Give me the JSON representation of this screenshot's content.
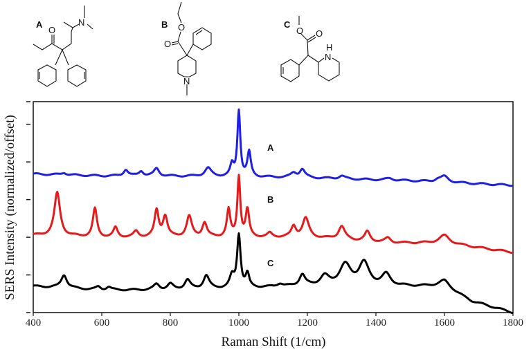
{
  "molecules": [
    {
      "label": "A",
      "atoms": [
        "O",
        "N"
      ]
    },
    {
      "label": "B",
      "atoms": [
        "O",
        "O",
        "N"
      ]
    },
    {
      "label": "C",
      "atoms": [
        "O",
        "O",
        "N",
        "H"
      ]
    }
  ],
  "chart_data": {
    "type": "line",
    "title": "",
    "xlabel": "Raman Shift (1/cm)",
    "ylabel": "SERS Intensity (normalized/offset)",
    "xlim": [
      400,
      1800
    ],
    "ylim": [
      0,
      5.6
    ],
    "xticks": [
      "400",
      "600",
      "800",
      "1000",
      "1200",
      "1400",
      "1600",
      "1800"
    ],
    "xtick_values": [
      400,
      600,
      800,
      1000,
      1200,
      1400,
      1600,
      1800
    ],
    "ytick_values": [
      0,
      1,
      2,
      3,
      4,
      5,
      5.6
    ],
    "grid": false,
    "series": [
      {
        "name": "A",
        "color": "#1f1fe6",
        "baseline": [
          [
            400,
            3.68
          ],
          [
            600,
            3.63
          ],
          [
            900,
            3.62
          ],
          [
            1200,
            3.58
          ],
          [
            1500,
            3.5
          ],
          [
            1800,
            3.38
          ]
        ],
        "peaks": [
          [
            490,
            0.06,
            8
          ],
          [
            670,
            0.17,
            8
          ],
          [
            715,
            0.13,
            8
          ],
          [
            760,
            0.2,
            9
          ],
          [
            910,
            0.22,
            11
          ],
          [
            980,
            0.3,
            6
          ],
          [
            1000,
            1.75,
            5
          ],
          [
            1030,
            0.65,
            6
          ],
          [
            1160,
            0.12,
            10
          ],
          [
            1185,
            0.22,
            9
          ],
          [
            1300,
            0.08,
            10
          ],
          [
            1440,
            0.05,
            12
          ],
          [
            1600,
            0.15,
            14
          ],
          [
            1580,
            0.06,
            10
          ]
        ]
      },
      {
        "name": "B",
        "color": "#e61a1a",
        "baseline": [
          [
            400,
            2.05
          ],
          [
            600,
            2.0
          ],
          [
            900,
            2.0
          ],
          [
            1200,
            2.0
          ],
          [
            1450,
            1.85
          ],
          [
            1600,
            1.85
          ],
          [
            1800,
            1.6
          ]
        ],
        "peaks": [
          [
            470,
            1.15,
            10
          ],
          [
            580,
            0.75,
            7
          ],
          [
            640,
            0.25,
            7
          ],
          [
            700,
            0.15,
            8
          ],
          [
            760,
            0.7,
            7
          ],
          [
            785,
            0.55,
            8
          ],
          [
            855,
            0.55,
            9
          ],
          [
            900,
            0.38,
            8
          ],
          [
            970,
            0.72,
            6
          ],
          [
            1000,
            1.6,
            5
          ],
          [
            1025,
            0.72,
            6
          ],
          [
            1090,
            0.1,
            8
          ],
          [
            1160,
            0.28,
            8
          ],
          [
            1195,
            0.5,
            11
          ],
          [
            1300,
            0.35,
            11
          ],
          [
            1375,
            0.25,
            9
          ],
          [
            1435,
            0.12,
            10
          ],
          [
            1600,
            0.2,
            18
          ]
        ]
      },
      {
        "name": "C",
        "color": "#000000",
        "baseline": [
          [
            400,
            0.7
          ],
          [
            600,
            0.6
          ],
          [
            800,
            0.6
          ],
          [
            1000,
            0.65
          ],
          [
            1200,
            0.7
          ],
          [
            1500,
            0.7
          ],
          [
            1600,
            0.7
          ],
          [
            1680,
            0.3
          ],
          [
            1800,
            0.0
          ]
        ],
        "peaks": [
          [
            490,
            0.35,
            10
          ],
          [
            590,
            0.08,
            8
          ],
          [
            620,
            0.08,
            8
          ],
          [
            760,
            0.15,
            10
          ],
          [
            800,
            0.15,
            10
          ],
          [
            850,
            0.25,
            10
          ],
          [
            905,
            0.35,
            10
          ],
          [
            980,
            0.3,
            8
          ],
          [
            1000,
            1.4,
            6
          ],
          [
            1025,
            0.35,
            6
          ],
          [
            1120,
            0.08,
            10
          ],
          [
            1185,
            0.3,
            10
          ],
          [
            1250,
            0.25,
            15
          ],
          [
            1310,
            0.55,
            20
          ],
          [
            1365,
            0.6,
            18
          ],
          [
            1430,
            0.3,
            15
          ],
          [
            1600,
            0.15,
            20
          ]
        ]
      }
    ],
    "annotations": [
      "A",
      "B",
      "C"
    ]
  }
}
